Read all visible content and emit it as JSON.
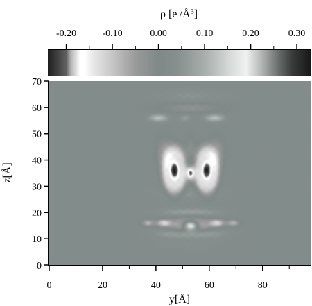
{
  "chart_data": {
    "type": "heatmap",
    "colorbar": {
      "title": "ρ [e",
      "title_sup_1": "-",
      "title_mid": "/Å",
      "title_sup_2": "3",
      "title_end": "]",
      "range": [
        -0.24,
        0.33
      ],
      "ticks": [
        -0.2,
        -0.1,
        0.0,
        0.1,
        0.2,
        0.3
      ],
      "tick_labels": [
        "-0.20",
        "-0.10",
        "0.00",
        "0.10",
        "0.20",
        "0.30"
      ],
      "minor_ticks": [
        -0.15,
        -0.05,
        0.05,
        0.15,
        0.25
      ],
      "stops": [
        {
          "v": -0.24,
          "color": "#1e1e1e"
        },
        {
          "v": -0.2,
          "color": "#606060"
        },
        {
          "v": -0.19,
          "color": "#b4b4b4"
        },
        {
          "v": -0.17,
          "color": "#ffffff"
        },
        {
          "v": -0.16,
          "color": "#ffffff"
        },
        {
          "v": -0.14,
          "color": "#e6e6e6"
        },
        {
          "v": -0.1,
          "color": "#c6c6c6"
        },
        {
          "v": -0.05,
          "color": "#9a9a9a"
        },
        {
          "v": 0.0,
          "color": "#7f8987"
        },
        {
          "v": 0.04,
          "color": "#868f8d"
        },
        {
          "v": 0.1,
          "color": "#a8aeac"
        },
        {
          "v": 0.15,
          "color": "#d2d6d4"
        },
        {
          "v": 0.19,
          "color": "#f0f2f1"
        },
        {
          "v": 0.22,
          "color": "#b8bcbb"
        },
        {
          "v": 0.26,
          "color": "#6a6e6d"
        },
        {
          "v": 0.29,
          "color": "#383b3a"
        },
        {
          "v": 0.33,
          "color": "#181818"
        }
      ]
    },
    "x_axis": {
      "label": "y[Å]",
      "range": [
        0,
        98
      ],
      "ticks": [
        0,
        20,
        40,
        60,
        80
      ],
      "tick_labels": [
        "0",
        "20",
        "40",
        "60",
        "80"
      ],
      "minor_ticks": [
        10,
        30,
        50,
        70,
        90
      ]
    },
    "y_axis": {
      "label": "z[Å]",
      "range": [
        0,
        70
      ],
      "ticks": [
        0,
        10,
        20,
        30,
        40,
        50,
        60,
        70
      ],
      "tick_labels": [
        "0",
        "10",
        "20",
        "30",
        "40",
        "50",
        "60",
        "70"
      ]
    },
    "background_value": 0.02,
    "features": [
      {
        "kind": "blob",
        "x": 47,
        "y": 36,
        "sx": 1.5,
        "sy": 3.0,
        "amp": -0.26
      },
      {
        "kind": "blob",
        "x": 59,
        "y": 36,
        "sx": 1.5,
        "sy": 3.0,
        "amp": -0.26
      },
      {
        "kind": "blob",
        "x": 53,
        "y": 35,
        "sx": 1.0,
        "sy": 1.8,
        "amp": -0.2
      },
      {
        "kind": "blob",
        "x": 53,
        "y": 15,
        "sx": 2.0,
        "sy": 1.3,
        "amp": 0.31
      },
      {
        "kind": "blob",
        "x": 53,
        "y": 15,
        "sx": 4.5,
        "sy": 2.2,
        "amp": -0.17
      },
      {
        "kind": "blob",
        "x": 43,
        "y": 16,
        "sx": 2.0,
        "sy": 1.0,
        "amp": -0.13
      },
      {
        "kind": "blob",
        "x": 63,
        "y": 16,
        "sx": 2.0,
        "sy": 1.0,
        "amp": -0.13
      },
      {
        "kind": "blob",
        "x": 37,
        "y": 16,
        "sx": 1.6,
        "sy": 0.9,
        "amp": -0.1
      },
      {
        "kind": "blob",
        "x": 69,
        "y": 16,
        "sx": 1.6,
        "sy": 0.9,
        "amp": -0.1
      },
      {
        "kind": "blob",
        "x": 53,
        "y": 12,
        "sx": 8.0,
        "sy": 1.3,
        "amp": 0.09
      },
      {
        "kind": "blob",
        "x": 53,
        "y": 20,
        "sx": 8.0,
        "sy": 1.2,
        "amp": 0.06
      },
      {
        "kind": "ring",
        "x": 47,
        "y": 36,
        "rx": 3.5,
        "ry": 7.0,
        "w": 1.2,
        "amp": -0.13
      },
      {
        "kind": "ring",
        "x": 59,
        "y": 36,
        "rx": 3.5,
        "ry": 7.0,
        "w": 1.2,
        "amp": -0.13
      },
      {
        "kind": "blob",
        "x": 43,
        "y": 43,
        "sx": 2.0,
        "sy": 4.0,
        "amp": -0.06
      },
      {
        "kind": "blob",
        "x": 63,
        "y": 43,
        "sx": 2.0,
        "sy": 4.0,
        "amp": -0.06
      },
      {
        "kind": "blob",
        "x": 53,
        "y": 44,
        "sx": 1.5,
        "sy": 4.0,
        "amp": -0.04
      },
      {
        "kind": "blob",
        "x": 53,
        "y": 39,
        "sx": 2.5,
        "sy": 1.8,
        "amp": 0.04
      },
      {
        "kind": "blob",
        "x": 41,
        "y": 56,
        "sx": 2.5,
        "sy": 1.0,
        "amp": 0.1
      },
      {
        "kind": "blob",
        "x": 62,
        "y": 56,
        "sx": 2.5,
        "sy": 1.0,
        "amp": 0.1
      },
      {
        "kind": "blob",
        "x": 51,
        "y": 56,
        "sx": 1.5,
        "sy": 1.0,
        "amp": 0.05
      },
      {
        "kind": "blob",
        "x": 53,
        "y": 60,
        "sx": 9.0,
        "sy": 1.6,
        "amp": -0.05
      },
      {
        "kind": "blob",
        "x": 53,
        "y": 64,
        "sx": 8.0,
        "sy": 2.0,
        "amp": 0.03
      },
      {
        "kind": "blob",
        "x": 53,
        "y": 27,
        "sx": 9.0,
        "sy": 1.8,
        "amp": 0.03
      },
      {
        "kind": "blob",
        "x": 53,
        "y": 8,
        "sx": 9.0,
        "sy": 1.3,
        "amp": 0.02
      }
    ]
  }
}
